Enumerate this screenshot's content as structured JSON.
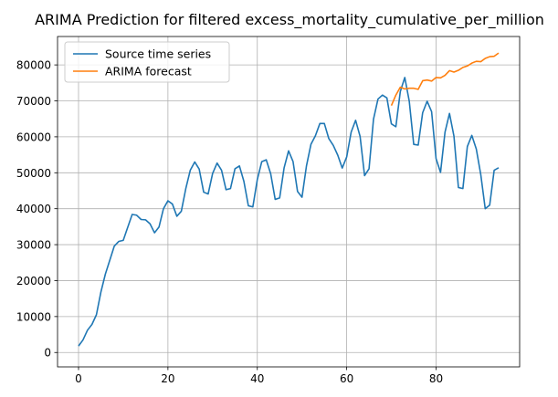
{
  "chart_data": {
    "type": "line",
    "title": "ARIMA Prediction for filtered excess_mortality_cumulative_per_million",
    "xlabel": "",
    "ylabel": "",
    "xlim": [
      -4.7,
      98.7
    ],
    "ylim": [
      -4000,
      87900
    ],
    "xticks": [
      0,
      20,
      40,
      60,
      80
    ],
    "yticks": [
      0,
      10000,
      20000,
      30000,
      40000,
      50000,
      60000,
      70000,
      80000
    ],
    "xtick_labels": [
      "0",
      "20",
      "40",
      "60",
      "80"
    ],
    "ytick_labels": [
      "0",
      "10000",
      "20000",
      "30000",
      "40000",
      "50000",
      "60000",
      "70000",
      "80000"
    ],
    "grid": true,
    "legend_position": "upper-left",
    "series": [
      {
        "name": "Source time series",
        "color": "#1f77b4",
        "x": [
          0,
          1,
          2,
          3,
          4,
          5,
          6,
          7,
          8,
          9,
          10,
          11,
          12,
          13,
          14,
          15,
          16,
          17,
          18,
          19,
          20,
          21,
          22,
          23,
          24,
          25,
          26,
          27,
          28,
          29,
          30,
          31,
          32,
          33,
          34,
          35,
          36,
          37,
          38,
          39,
          40,
          41,
          42,
          43,
          44,
          45,
          46,
          47,
          48,
          49,
          50,
          51,
          52,
          53,
          54,
          55,
          56,
          57,
          58,
          59,
          60,
          61,
          62,
          63,
          64,
          65,
          66,
          67,
          68,
          69,
          70,
          71,
          72,
          73,
          74,
          75,
          76,
          77,
          78,
          79,
          80,
          81,
          82,
          83,
          84,
          85,
          86,
          87,
          88,
          89,
          90,
          91,
          92,
          93,
          94
        ],
        "values": [
          1800,
          3500,
          6200,
          7800,
          10500,
          16800,
          21800,
          25700,
          29600,
          30900,
          31200,
          34800,
          38400,
          38200,
          37000,
          36900,
          35800,
          33300,
          34900,
          40000,
          42200,
          41300,
          37900,
          39300,
          45600,
          50700,
          53000,
          51000,
          44600,
          44100,
          49800,
          52700,
          50700,
          45300,
          45600,
          51100,
          51900,
          47600,
          40800,
          40500,
          48100,
          53100,
          53600,
          49700,
          42600,
          43000,
          51400,
          56100,
          53100,
          44800,
          43200,
          51900,
          57900,
          60300,
          63700,
          63700,
          59500,
          57600,
          54900,
          51300,
          54400,
          61300,
          64600,
          60100,
          49200,
          51100,
          64900,
          70500,
          71600,
          70800,
          63600,
          62800,
          72600,
          76500,
          69900,
          57900,
          57700,
          66700,
          69900,
          67000,
          53900,
          50100,
          61300,
          66500,
          60200,
          45900,
          45600,
          57300,
          60400,
          56600,
          49500,
          40000,
          41000,
          50700,
          51400
        ]
      },
      {
        "name": "ARIMA forecast",
        "color": "#ff7f0e",
        "x": [
          70,
          71,
          72,
          73,
          74,
          75,
          76,
          77,
          78,
          79,
          80,
          81,
          82,
          83,
          84,
          85,
          86,
          87,
          88,
          89,
          90,
          91,
          92,
          93,
          94
        ],
        "values": [
          68700,
          71600,
          73800,
          73300,
          73500,
          73500,
          73200,
          75600,
          75800,
          75500,
          76500,
          76400,
          77100,
          78400,
          78000,
          78500,
          79300,
          79700,
          80500,
          81000,
          80900,
          81800,
          82300,
          82400,
          83300
        ]
      }
    ]
  }
}
